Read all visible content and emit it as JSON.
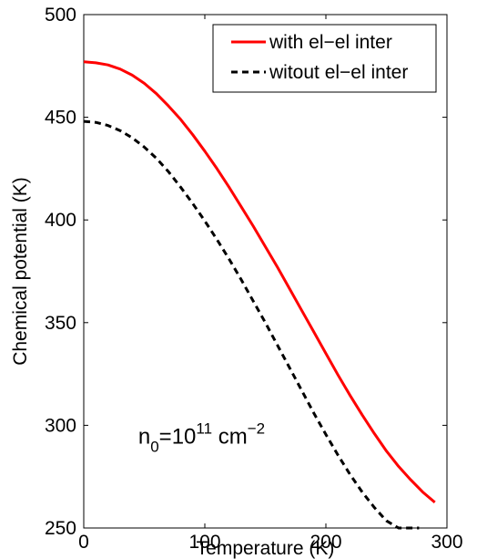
{
  "chart_data": {
    "type": "line",
    "title": "",
    "xlabel": "Temperature (K)",
    "ylabel": "Chemical potential (K)",
    "xlim": [
      0,
      300
    ],
    "ylim": [
      250,
      500
    ],
    "xticks": [
      0,
      100,
      200,
      300
    ],
    "yticks": [
      250,
      300,
      350,
      400,
      450,
      500
    ],
    "xtick_labels": [
      "0",
      "100",
      "200",
      "300"
    ],
    "ytick_labels": [
      "250",
      "300",
      "350",
      "400",
      "450",
      "500"
    ],
    "grid": false,
    "legend_position": "top-right",
    "annotation": {
      "parts": [
        "n",
        "0",
        "=10",
        "11",
        " cm",
        "−2"
      ],
      "x": 45,
      "y": 291
    },
    "series": [
      {
        "name": "with el−el inter",
        "color": "#ff0000",
        "style": "solid",
        "x": [
          0,
          10,
          20,
          30,
          40,
          50,
          60,
          70,
          80,
          90,
          100,
          110,
          120,
          130,
          140,
          150,
          160,
          170,
          180,
          190,
          200,
          210,
          220,
          230,
          240,
          250,
          260,
          270,
          280,
          290
        ],
        "y": [
          477,
          476.5,
          475.5,
          473.5,
          470.5,
          466.5,
          461.5,
          455.5,
          449,
          441.5,
          433.5,
          425,
          416,
          406.5,
          397,
          387,
          377,
          366.5,
          356,
          345.5,
          335,
          324.5,
          314.5,
          305,
          296,
          287.5,
          280,
          273.5,
          267.5,
          262.5
        ]
      },
      {
        "name": "witout el−el inter",
        "color": "#000000",
        "style": "dashed",
        "x": [
          0,
          10,
          20,
          30,
          40,
          50,
          60,
          70,
          80,
          90,
          100,
          110,
          120,
          130,
          140,
          150,
          160,
          170,
          180,
          190,
          200,
          210,
          220,
          230,
          240,
          250,
          260,
          270,
          277
        ],
        "y": [
          448,
          447.5,
          446,
          443.5,
          440,
          435.5,
          430,
          423.5,
          416,
          408,
          399.5,
          390.5,
          381,
          371,
          360.5,
          350,
          339,
          328,
          317,
          306,
          295.5,
          285.5,
          276,
          267.5,
          260,
          253.5,
          250,
          250,
          250
        ]
      }
    ]
  }
}
